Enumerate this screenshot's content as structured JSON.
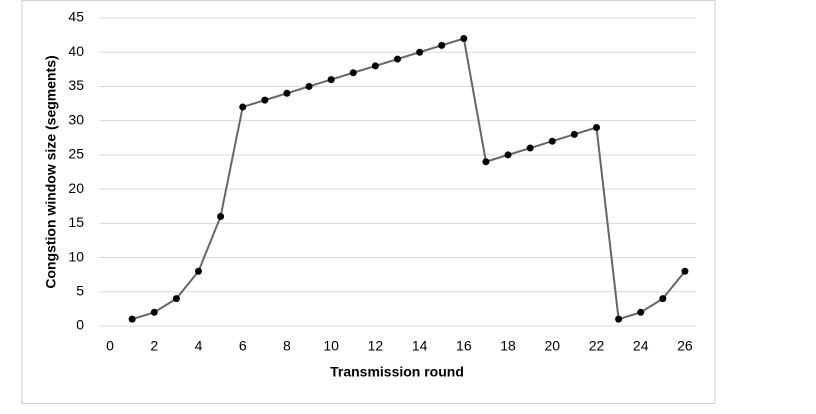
{
  "chart_data": {
    "type": "line",
    "xlabel": "Transmission round",
    "ylabel": "Congstion window size (segments)",
    "x": [
      1,
      2,
      3,
      4,
      5,
      6,
      7,
      8,
      9,
      10,
      11,
      12,
      13,
      14,
      15,
      16,
      17,
      18,
      19,
      20,
      21,
      22,
      23,
      24,
      25,
      26
    ],
    "series": [
      {
        "color": "#666666",
        "values": [
          1,
          2,
          4,
          8,
          16,
          32,
          33,
          34,
          35,
          36,
          37,
          38,
          39,
          40,
          41,
          42,
          24,
          25,
          26,
          27,
          28,
          29,
          1,
          2,
          4,
          8
        ]
      }
    ],
    "xlim": [
      -0.5,
      26.5
    ],
    "xticks": [
      0,
      2,
      4,
      6,
      8,
      10,
      12,
      14,
      16,
      18,
      20,
      22,
      24,
      26
    ],
    "ylim": [
      0,
      45
    ],
    "yticks": [
      0,
      5,
      10,
      15,
      20,
      25,
      30,
      35,
      40,
      45
    ],
    "grid": true
  }
}
